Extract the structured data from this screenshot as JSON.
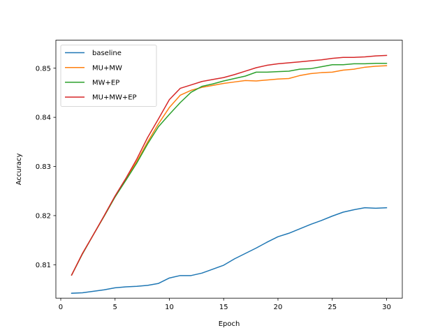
{
  "chart_data": {
    "type": "line",
    "title": "",
    "xlabel": "Epoch",
    "ylabel": "Accuracy",
    "xlim": [
      -0.45,
      31.45
    ],
    "ylim": [
      0.8032,
      0.8557
    ],
    "xticks": [
      0,
      5,
      10,
      15,
      20,
      25,
      30
    ],
    "xtick_labels": [
      "0",
      "5",
      "10",
      "15",
      "20",
      "25",
      "30"
    ],
    "yticks": [
      0.81,
      0.82,
      0.83,
      0.84,
      0.85
    ],
    "ytick_labels": [
      "0.81",
      "0.82",
      "0.83",
      "0.84",
      "0.85"
    ],
    "grid": false,
    "legend_position": "top-left",
    "x": [
      1,
      2,
      3,
      4,
      5,
      6,
      7,
      8,
      9,
      10,
      11,
      12,
      13,
      14,
      15,
      16,
      17,
      18,
      19,
      20,
      21,
      22,
      23,
      24,
      25,
      26,
      27,
      28,
      29,
      30
    ],
    "series": [
      {
        "name": "baseline",
        "color": "#1f77b4",
        "values": [
          0.8042,
          0.8043,
          0.8046,
          0.8049,
          0.8053,
          0.8055,
          0.8056,
          0.8058,
          0.8062,
          0.8073,
          0.8078,
          0.8078,
          0.8083,
          0.8091,
          0.8099,
          0.8112,
          0.8123,
          0.8134,
          0.8146,
          0.8157,
          0.8164,
          0.8173,
          0.8182,
          0.819,
          0.8199,
          0.8207,
          0.8212,
          0.8216,
          0.8215,
          0.8216
        ]
      },
      {
        "name": "MU+MW",
        "color": "#ff7f0e",
        "values": [
          0.8079,
          0.8123,
          0.8161,
          0.8199,
          0.8238,
          0.8274,
          0.831,
          0.835,
          0.8387,
          0.842,
          0.8445,
          0.8455,
          0.8461,
          0.8465,
          0.8469,
          0.8472,
          0.8475,
          0.8474,
          0.8476,
          0.8478,
          0.8479,
          0.8485,
          0.8489,
          0.8491,
          0.8492,
          0.8496,
          0.8498,
          0.8502,
          0.8504,
          0.8505
        ]
      },
      {
        "name": "MW+EP",
        "color": "#2ca02c",
        "values": [
          0.8079,
          0.8122,
          0.8161,
          0.8199,
          0.8238,
          0.8272,
          0.8307,
          0.8346,
          0.8381,
          0.8406,
          0.843,
          0.8451,
          0.8463,
          0.8468,
          0.8474,
          0.8479,
          0.8484,
          0.8492,
          0.8492,
          0.8493,
          0.8494,
          0.8498,
          0.8499,
          0.8503,
          0.8507,
          0.8507,
          0.8509,
          0.8509,
          0.851,
          0.851
        ]
      },
      {
        "name": "MU+MW+EP",
        "color": "#d62728",
        "values": [
          0.8079,
          0.8123,
          0.8161,
          0.82,
          0.824,
          0.8276,
          0.8315,
          0.8359,
          0.8397,
          0.8436,
          0.8459,
          0.8466,
          0.8473,
          0.8477,
          0.8481,
          0.8487,
          0.8494,
          0.8501,
          0.8506,
          0.8509,
          0.8511,
          0.8513,
          0.8515,
          0.8517,
          0.852,
          0.8522,
          0.8522,
          0.8523,
          0.8525,
          0.8526
        ]
      }
    ]
  }
}
